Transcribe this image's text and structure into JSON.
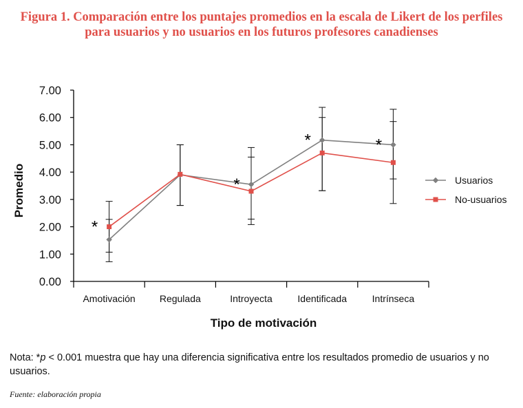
{
  "figure": {
    "title_line1": "Figura 1. Comparación entre los puntajes promedios en la escala de Likert de los perfiles",
    "title_line2": "para usuarios y no usuarios en los futuros profesores canadienses",
    "title_color": "#e0504a"
  },
  "chart_data": {
    "type": "line",
    "title": "Figura 1. Comparación entre los puntajes promedios en la escala de Likert de los perfiles para usuarios y no usuarios en los futuros profesores canadienses",
    "xlabel": "Tipo de motivación",
    "ylabel": "Promedio",
    "categories": [
      "Amotivación",
      "Regulada",
      "Introyecta",
      "Identificada",
      "Intrínseca"
    ],
    "ylim": [
      0,
      7
    ],
    "yticks": [
      0,
      1,
      2,
      3,
      4,
      5,
      6,
      7
    ],
    "ytick_labels": [
      "0.00",
      "1.00",
      "2.00",
      "3.00",
      "4.00",
      "5.00",
      "6.00",
      "7.00"
    ],
    "legend_position": "right",
    "grid": false,
    "series": [
      {
        "name": "Usuarios",
        "color": "#808080",
        "marker": "diamond",
        "values": [
          1.53,
          3.9,
          3.55,
          5.17,
          5.0
        ],
        "err_low": [
          0.72,
          2.78,
          2.28,
          3.32,
          3.75
        ],
        "err_high": [
          2.27,
          5.0,
          4.9,
          6.37,
          6.3
        ]
      },
      {
        "name": "No-usuarios",
        "color": "#e0504a",
        "marker": "square",
        "values": [
          2.0,
          3.92,
          3.3,
          4.7,
          4.35
        ],
        "err_low": [
          1.07,
          2.78,
          2.08,
          3.32,
          2.85
        ],
        "err_high": [
          2.93,
          5.0,
          4.55,
          6.0,
          5.85
        ]
      }
    ],
    "significance_marker": "*",
    "significant_categories": [
      "Amotivación",
      "Introyecta",
      "Identificada",
      "Intrínseca"
    ]
  },
  "note": {
    "prefix": "Nota: *",
    "p_symbol": "p",
    "rest": " < 0.001 muestra que hay una diferencia significativa entre los resultados promedio de usuarios y no usuarios."
  },
  "source": "Fuente: elaboración propia"
}
